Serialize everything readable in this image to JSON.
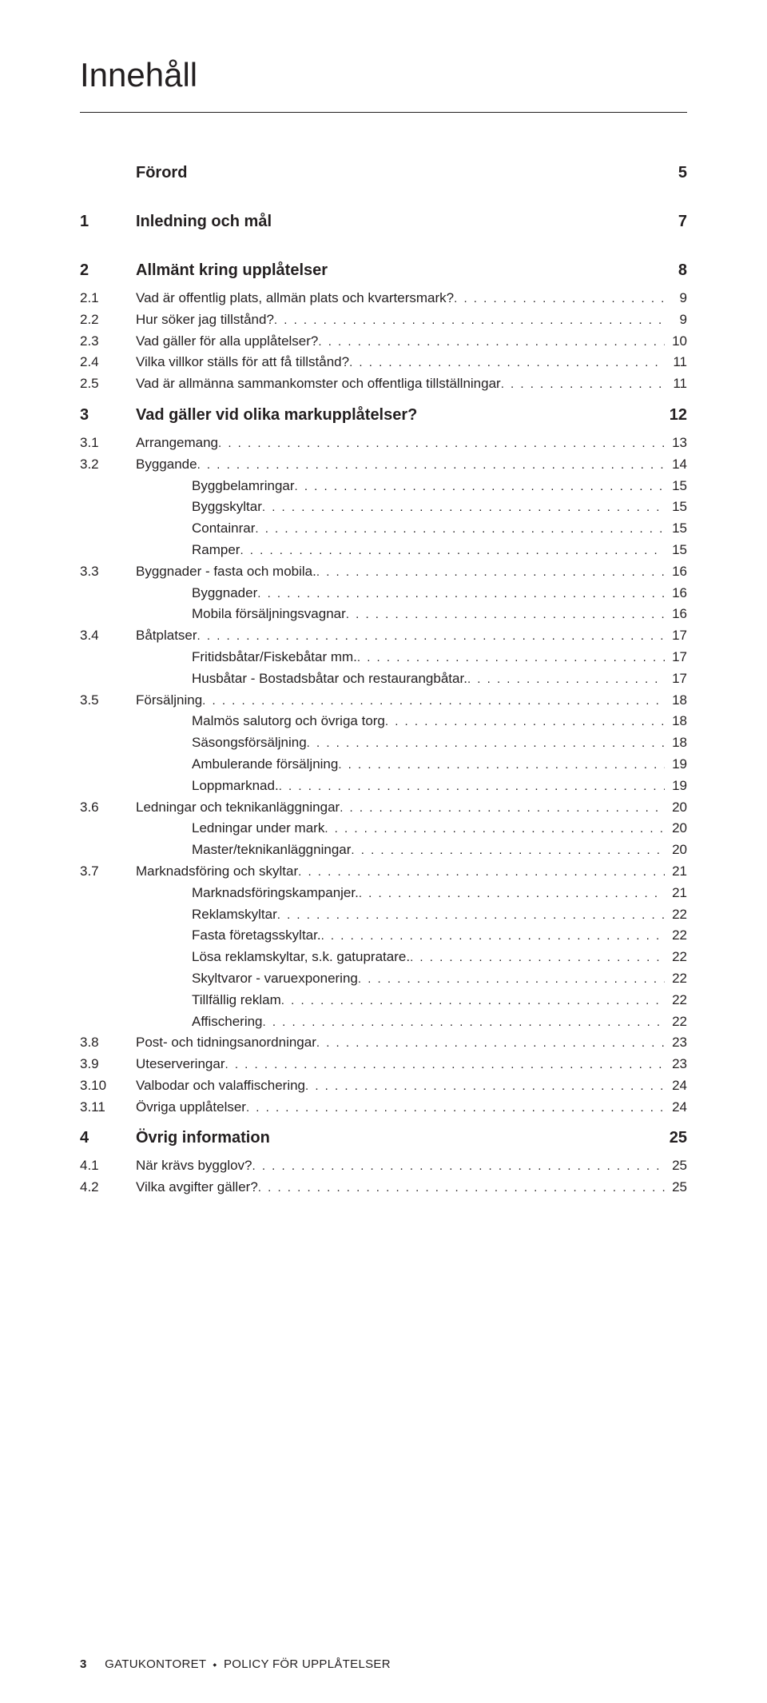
{
  "title": "Innehåll",
  "toc": [
    {
      "level": 0,
      "num": "",
      "label": "Förord",
      "page": "5",
      "bold": true,
      "nodots": true,
      "extraClass": "forord"
    },
    {
      "level": 1,
      "num": "1",
      "label": "Inledning och mål",
      "page": "7",
      "bold": true,
      "nodots": true,
      "extraClass": "spaced"
    },
    {
      "level": 1,
      "num": "2",
      "label": "Allmänt kring upplåtelser",
      "page": "8",
      "bold": true,
      "nodots": true
    },
    {
      "level": 2,
      "num": "2.1",
      "label": "Vad är offentlig plats, allmän plats och kvartersmark?",
      "page": "9"
    },
    {
      "level": 2,
      "num": "2.2",
      "label": "Hur söker jag tillstånd?",
      "page": "9"
    },
    {
      "level": 2,
      "num": "2.3",
      "label": "Vad gäller för alla upplåtelser?",
      "page": "10"
    },
    {
      "level": 2,
      "num": "2.4",
      "label": "Vilka villkor ställs för att få tillstånd?",
      "page": "11"
    },
    {
      "level": 2,
      "num": "2.5",
      "label": "Vad är allmänna sammankomster och offentliga tillställningar",
      "page": "11"
    },
    {
      "level": 1,
      "num": "3",
      "label": "Vad gäller vid olika markupplåtelser?",
      "page": "12",
      "bold": true,
      "nodots": true
    },
    {
      "level": 2,
      "num": "3.1",
      "label": "Arrangemang",
      "page": "13"
    },
    {
      "level": 2,
      "num": "3.2",
      "label": "Byggande",
      "page": "14"
    },
    {
      "level": 3,
      "label": "Byggbelamringar",
      "page": "15"
    },
    {
      "level": 3,
      "label": "Byggskyltar",
      "page": "15"
    },
    {
      "level": 3,
      "label": "Containrar",
      "page": "15"
    },
    {
      "level": 3,
      "label": "Ramper",
      "page": "15"
    },
    {
      "level": 2,
      "num": "3.3",
      "label": "Byggnader - fasta och mobila.",
      "page": "16"
    },
    {
      "level": 3,
      "label": "Byggnader",
      "page": "16"
    },
    {
      "level": 3,
      "label": "Mobila försäljningsvagnar",
      "page": "16"
    },
    {
      "level": 2,
      "num": "3.4",
      "label": "Båtplatser",
      "page": "17"
    },
    {
      "level": 3,
      "label": "Fritidsbåtar/Fiskebåtar mm.",
      "page": "17"
    },
    {
      "level": 3,
      "label": "Husbåtar - Bostadsbåtar och restaurangbåtar.",
      "page": "17"
    },
    {
      "level": 2,
      "num": "3.5",
      "label": "Försäljning",
      "page": "18"
    },
    {
      "level": 3,
      "label": "Malmös salutorg och övriga torg",
      "page": "18"
    },
    {
      "level": 3,
      "label": "Säsongsförsäljning",
      "page": "18"
    },
    {
      "level": 3,
      "label": "Ambulerande försäljning",
      "page": "19"
    },
    {
      "level": 3,
      "label": "Loppmarknad.",
      "page": "19"
    },
    {
      "level": 2,
      "num": "3.6",
      "label": "Ledningar och teknikanläggningar",
      "page": "20"
    },
    {
      "level": 3,
      "label": "Ledningar under mark",
      "page": "20"
    },
    {
      "level": 3,
      "label": "Master/teknikanläggningar",
      "page": "20"
    },
    {
      "level": 2,
      "num": "3.7",
      "label": "Marknadsföring och skyltar",
      "page": "21"
    },
    {
      "level": 3,
      "label": "Marknadsföringskampanjer.",
      "page": "21"
    },
    {
      "level": 3,
      "label": "Reklamskyltar",
      "page": "22"
    },
    {
      "level": 3,
      "label": "Fasta företagsskyltar.",
      "page": "22"
    },
    {
      "level": 3,
      "label": "Lösa reklamskyltar, s.k. gatupratare.",
      "page": "22"
    },
    {
      "level": 3,
      "label": "Skyltvaror - varuexponering",
      "page": "22"
    },
    {
      "level": 3,
      "label": "Tillfällig reklam",
      "page": "22"
    },
    {
      "level": 3,
      "label": "Affischering",
      "page": "22"
    },
    {
      "level": 2,
      "num": "3.8",
      "label": "Post-  och tidningsanordningar",
      "page": "23"
    },
    {
      "level": 2,
      "num": "3.9",
      "label": "Uteserveringar",
      "page": "23"
    },
    {
      "level": 2,
      "num": "3.10",
      "label": "Valbodar och valaffischering",
      "page": "24"
    },
    {
      "level": 2,
      "num": "3.11",
      "label": "Övriga upplåtelser",
      "page": "24"
    },
    {
      "level": 1,
      "num": "4",
      "label": "Övrig information",
      "page": "25",
      "bold": true,
      "nodots": true
    },
    {
      "level": 2,
      "num": "4.1",
      "label": "När krävs bygglov?",
      "page": "25"
    },
    {
      "level": 2,
      "num": "4.2",
      "label": "Vilka avgifter gäller?",
      "page": "25"
    }
  ],
  "footer": {
    "pagenum": "3",
    "org": "GATUKONTORET",
    "doc": "POLICY FÖR UPPLÅTELSER"
  }
}
